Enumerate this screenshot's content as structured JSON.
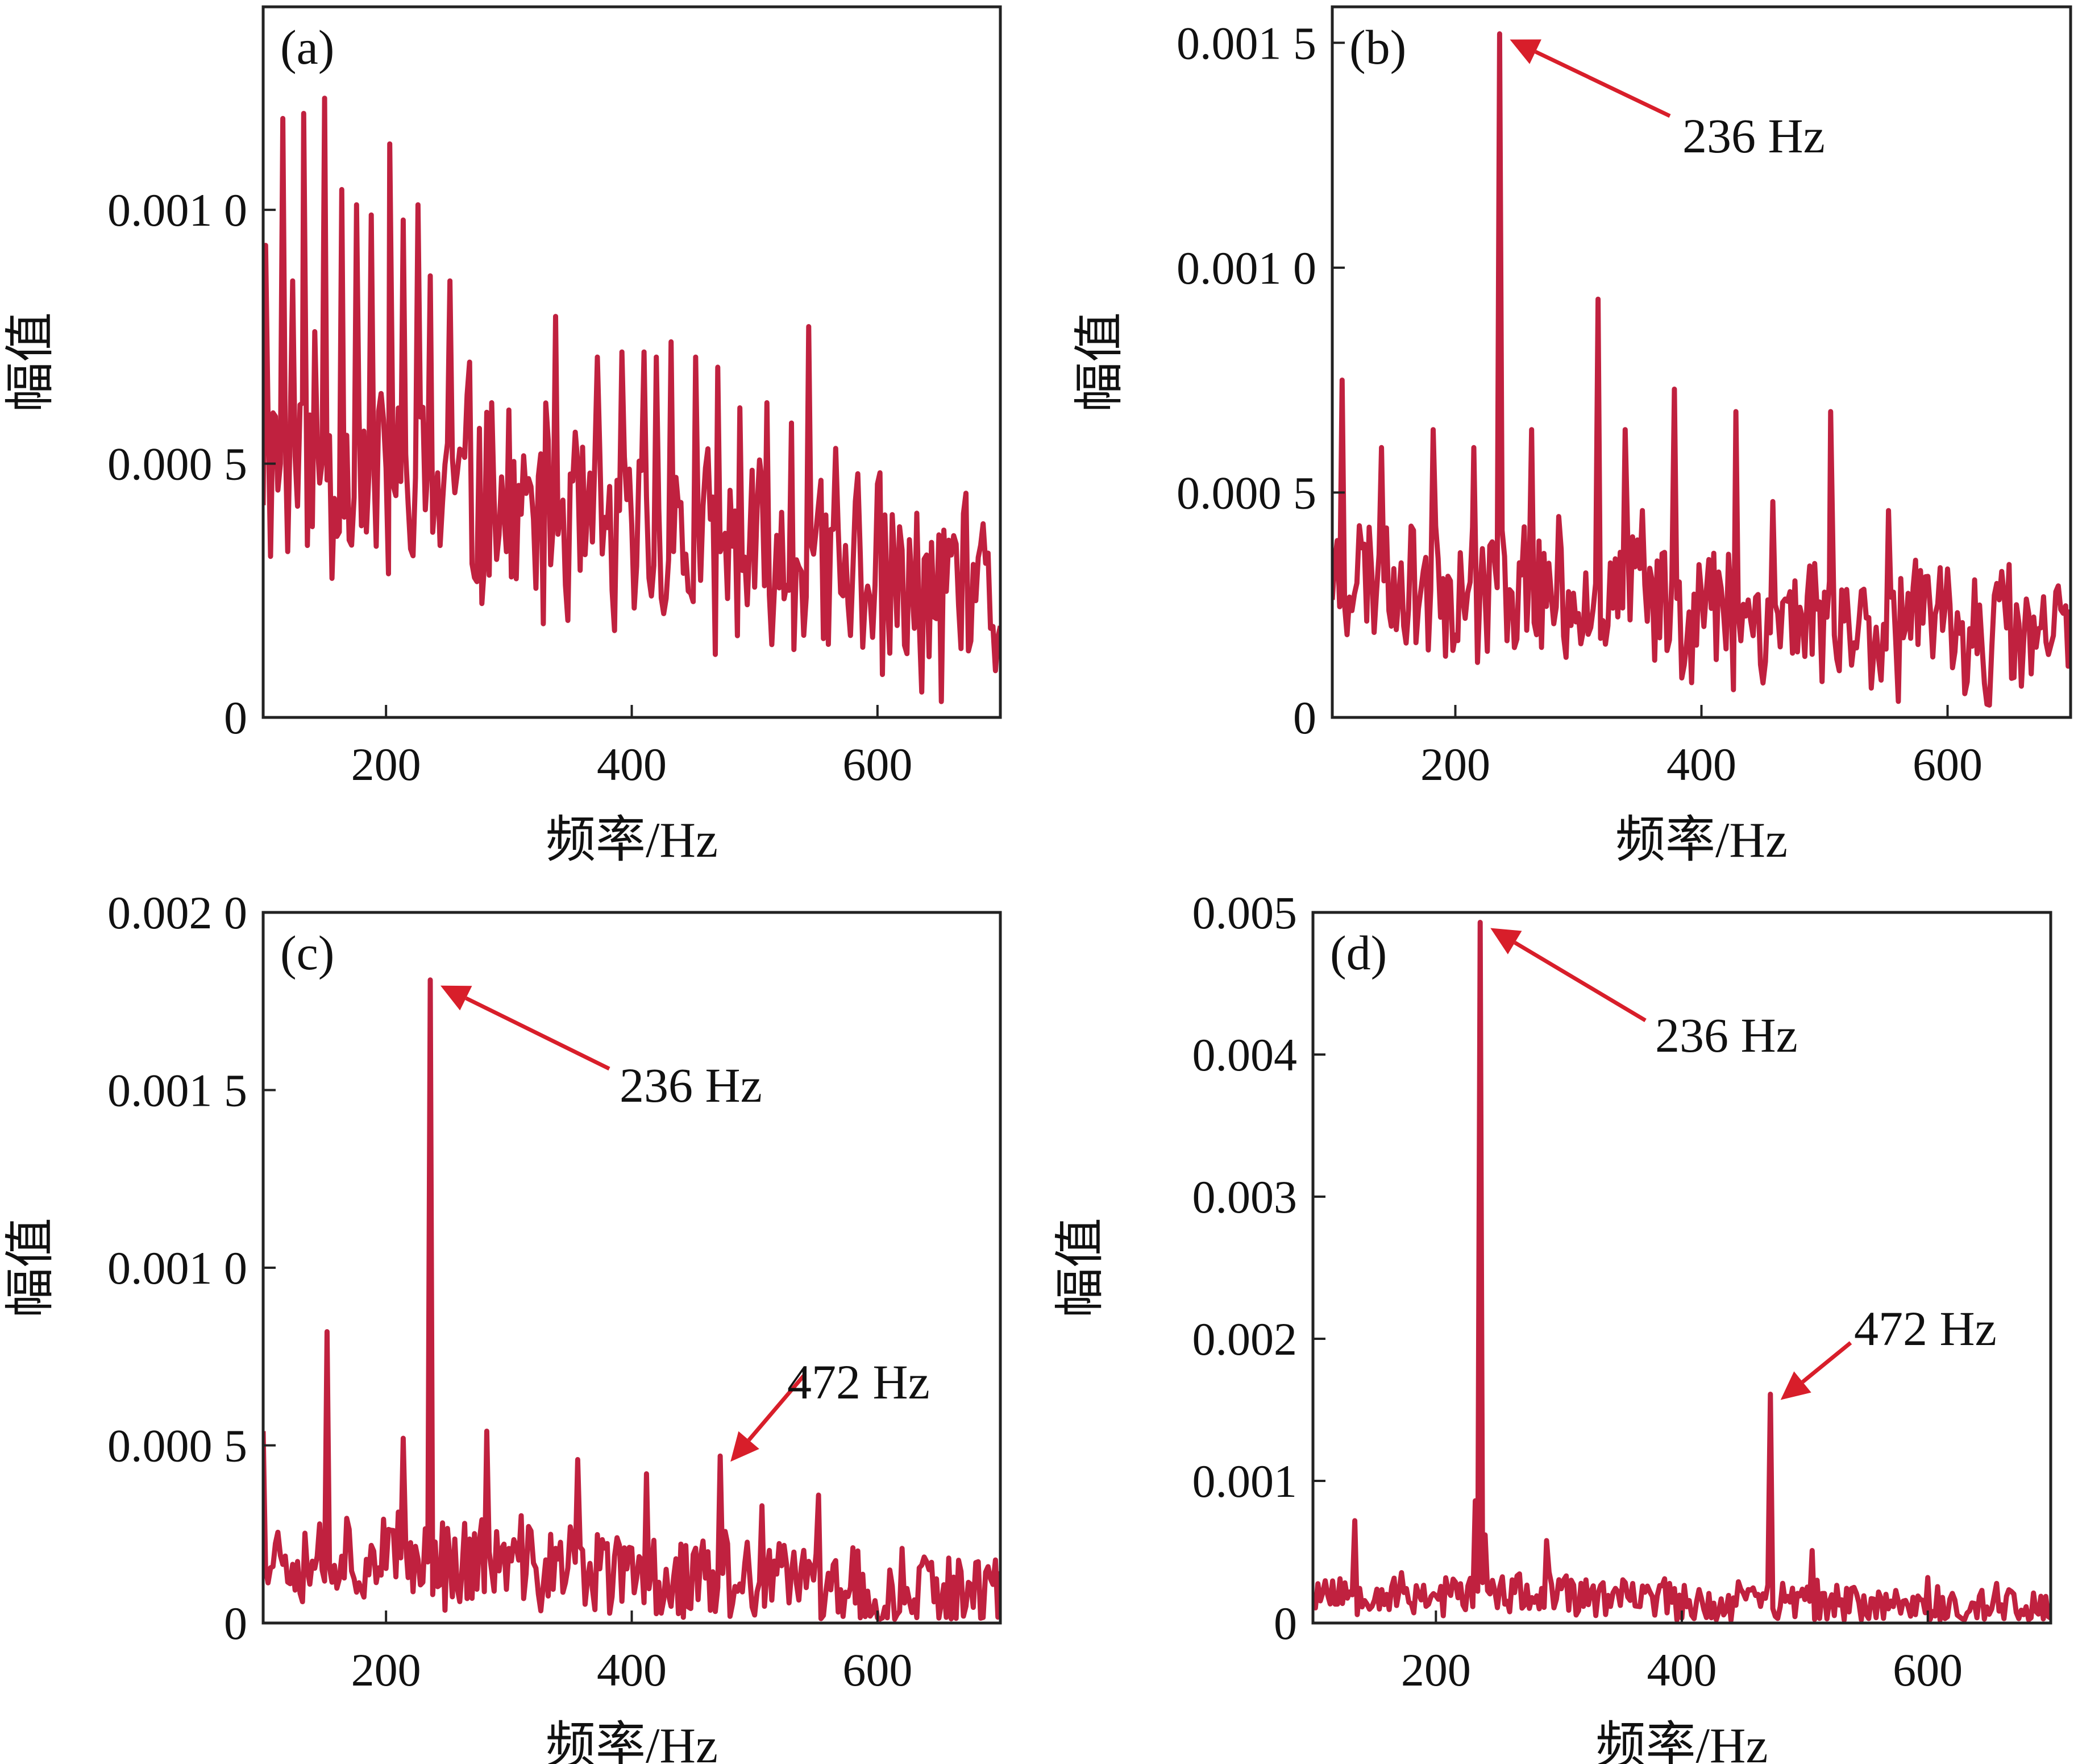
{
  "colors": {
    "line": "#c0213f",
    "arrow": "#d81e2a",
    "frame": "#222222"
  },
  "chart_data": [
    {
      "type": "line",
      "panel_label": "(a)",
      "xlabel": "频率/Hz",
      "ylabel": "幅值",
      "xlim": [
        100,
        700
      ],
      "ylim": [
        0,
        0.0014
      ],
      "xticks": [
        200,
        400,
        600
      ],
      "xtick_labels": [
        "200",
        "400",
        "600"
      ],
      "yticks": [
        0,
        0.0005,
        0.001
      ],
      "ytick_labels": [
        "0",
        "0.000 5",
        "0.001 0"
      ],
      "noise": {
        "seed": 11,
        "base_start": 0.00052,
        "base_end": 0.00022,
        "spread": 0.00038,
        "floor": 2e-05
      },
      "series": [
        {
          "x": [
            102,
            108,
            116,
            124,
            133,
            142,
            150,
            164,
            176,
            188,
            203,
            214,
            226,
            236,
            252,
            268,
            286,
            338,
            372,
            392,
            410,
            420,
            432,
            452,
            470,
            488,
            510,
            530,
            544,
            566,
            584,
            600,
            620,
            640,
            660,
            680,
            700
          ],
          "y": [
            0.00093,
            0.0006,
            0.00118,
            0.00086,
            0.00119,
            0.00076,
            0.00122,
            0.00104,
            0.00101,
            0.00099,
            0.00113,
            0.00098,
            0.00101,
            0.00087,
            0.00086,
            0.0007,
            0.00062,
            0.00079,
            0.00071,
            0.00072,
            0.00072,
            0.00071,
            0.00074,
            0.00071,
            0.00069,
            0.00061,
            0.00062,
            0.00058,
            0.00077,
            0.00053,
            0.00048,
            0.00046,
            0.00033,
            0.00032,
            0.00032,
            0.00023,
            0.00018
          ]
        }
      ]
    },
    {
      "type": "line",
      "panel_label": "(b)",
      "xlabel": "频率/Hz",
      "ylabel": "幅值",
      "xlim": [
        100,
        700
      ],
      "ylim": [
        0,
        0.00158
      ],
      "xticks": [
        200,
        400,
        600
      ],
      "xtick_labels": [
        "200",
        "400",
        "600"
      ],
      "yticks": [
        0,
        0.0005,
        0.001,
        0.0015
      ],
      "ytick_labels": [
        "0",
        "0.000 5",
        "0.001 0",
        "0.001 5"
      ],
      "noise": {
        "seed": 23,
        "base_start": 0.00034,
        "base_end": 0.00018,
        "spread": 0.00028,
        "floor": 2e-05
      },
      "series": [
        {
          "x": [
            108,
            140,
            182,
            215,
            236,
            262,
            316,
            338,
            352,
            378,
            428,
            458,
            505,
            552,
            600,
            650,
            700
          ],
          "y": [
            0.00075,
            0.0006,
            0.00064,
            0.0006,
            0.00152,
            0.00064,
            0.00093,
            0.00064,
            0.00046,
            0.00073,
            0.00068,
            0.00048,
            0.00068,
            0.00046,
            0.00033,
            0.00034,
            0.00024
          ]
        }
      ],
      "annotations": [
        {
          "text": "236 Hz",
          "x": 236,
          "y": 0.00152
        }
      ]
    },
    {
      "type": "line",
      "panel_label": "(c)",
      "xlabel": "频率/Hz",
      "ylabel": "幅值",
      "xlim": [
        100,
        700
      ],
      "ylim": [
        0,
        0.002
      ],
      "xticks": [
        200,
        400,
        600
      ],
      "xtick_labels": [
        "200",
        "400",
        "600"
      ],
      "yticks": [
        0,
        0.0005,
        0.001,
        0.0015,
        0.002
      ],
      "ytick_labels": [
        "0",
        "0.000 5",
        "0.001 0",
        "0.001 5",
        "0.002 0"
      ],
      "noise": {
        "seed": 37,
        "base_start": 0.00022,
        "base_end": 9e-05,
        "spread": 0.00024,
        "floor": 1e-05
      },
      "series": [
        {
          "x": [
            100,
            152,
            214,
            236,
            282,
            356,
            412,
            472,
            506,
            552,
            620,
            680
          ],
          "y": [
            0.00054,
            0.00082,
            0.00052,
            0.00181,
            0.00054,
            0.00046,
            0.00042,
            0.00047,
            0.00033,
            0.00036,
            0.00021,
            0.00017
          ]
        }
      ],
      "annotations": [
        {
          "text": "236 Hz",
          "x": 236,
          "y": 0.00181
        },
        {
          "text": "472 Hz",
          "x": 472,
          "y": 0.00047
        }
      ]
    },
    {
      "type": "line",
      "panel_label": "(d)",
      "xlabel": "频率/Hz",
      "ylabel": "幅值",
      "xlim": [
        100,
        700
      ],
      "ylim": [
        0,
        0.005
      ],
      "xticks": [
        200,
        400,
        600
      ],
      "xtick_labels": [
        "200",
        "400",
        "600"
      ],
      "yticks": [
        0,
        0.001,
        0.002,
        0.003,
        0.004,
        0.005
      ],
      "ytick_labels": [
        "0",
        "0.001",
        "0.002",
        "0.003",
        "0.004",
        "0.005"
      ],
      "noise": {
        "seed": 53,
        "base_start": 0.00024,
        "base_end": 0.00012,
        "spread": 0.00028,
        "floor": 2e-05
      },
      "series": [
        {
          "x": [
            134,
            232,
            236,
            240,
            290,
            472,
            506,
            600
          ],
          "y": [
            0.00072,
            0.00086,
            0.00493,
            0.00062,
            0.00058,
            0.00161,
            0.00051,
            0.00032
          ]
        }
      ],
      "annotations": [
        {
          "text": "236 Hz",
          "x": 236,
          "y": 0.00493
        },
        {
          "text": "472 Hz",
          "x": 472,
          "y": 0.00161
        }
      ]
    }
  ]
}
